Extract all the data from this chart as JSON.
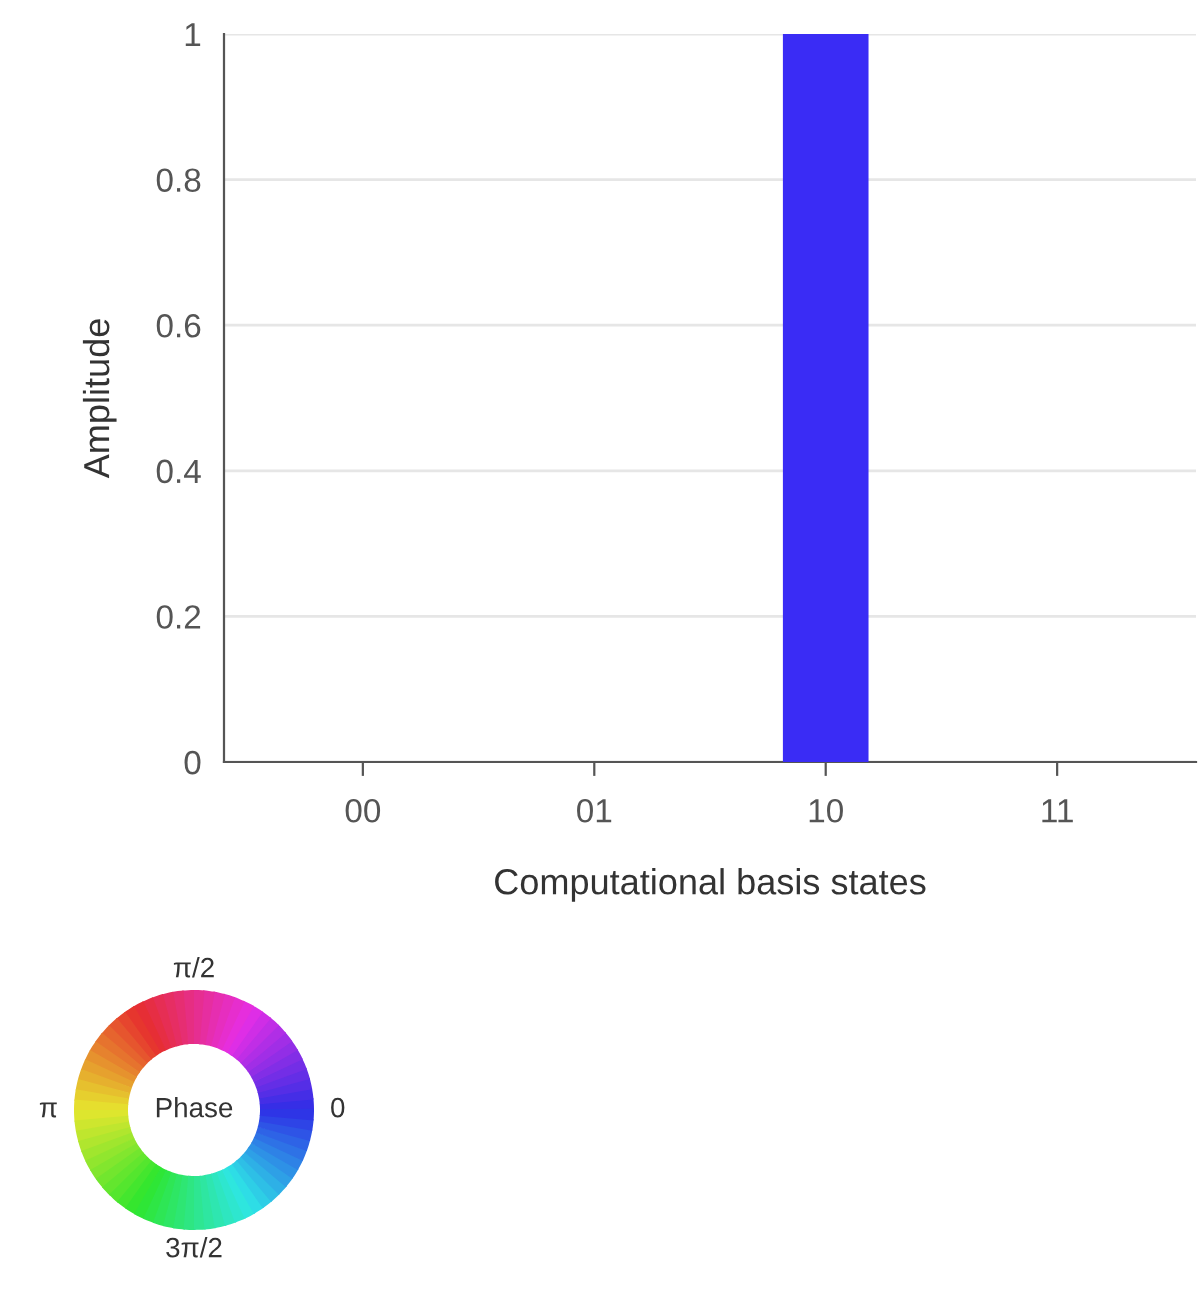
{
  "chart_data": {
    "type": "bar",
    "xlabel": "Computational basis states",
    "ylabel": "Amplitude",
    "categories": [
      "00",
      "01",
      "10",
      "11"
    ],
    "values": [
      0,
      0,
      1,
      0
    ],
    "color": "#3a2cf5",
    "ylim": [
      0,
      1
    ],
    "yticks": [
      0,
      0.2,
      0.4,
      0.6,
      0.8,
      1
    ],
    "grid": "y",
    "annotations": [
      "π/2",
      "π",
      "0",
      "3π/2",
      "Phase"
    ]
  }
}
